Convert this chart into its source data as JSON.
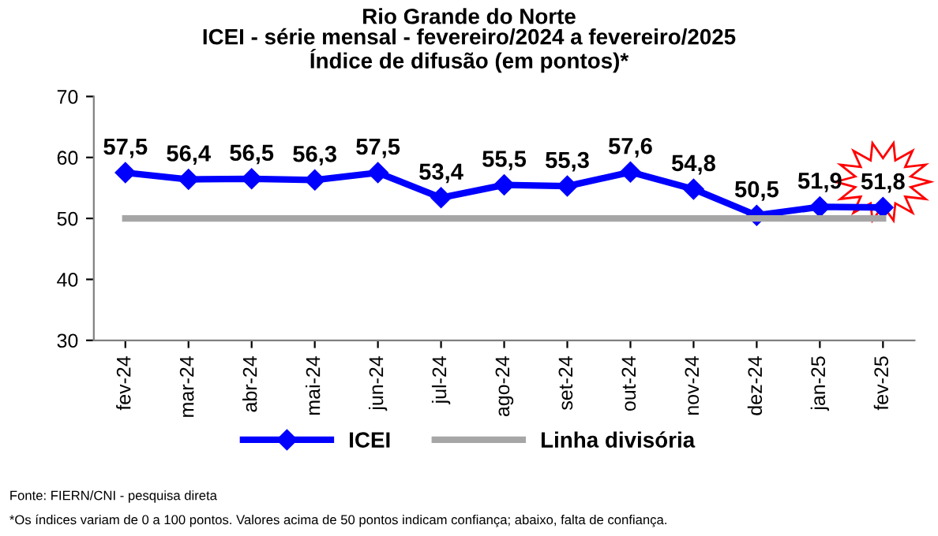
{
  "chart_data": {
    "type": "line",
    "title": "Rio Grande do Norte\nICEI - série mensal - fevereiro/2024 a fevereiro/2025\nÍndice de difusão (em pontos)*",
    "categories": [
      "fev-24",
      "mar-24",
      "abr-24",
      "mai-24",
      "jun-24",
      "jul-24",
      "ago-24",
      "set-24",
      "out-24",
      "nov-24",
      "dez-24",
      "jan-25",
      "fev-25"
    ],
    "series": [
      {
        "name": "ICEI",
        "color": "#0000ff",
        "marker": "diamond",
        "value_labels": [
          "57,5",
          "56,4",
          "56,5",
          "56,3",
          "57,5",
          "53,4",
          "55,5",
          "55,3",
          "57,6",
          "54,8",
          "50,5",
          "51,9",
          "51,8"
        ],
        "values": [
          57.5,
          56.4,
          56.5,
          56.3,
          57.5,
          53.4,
          55.5,
          55.3,
          57.6,
          54.8,
          50.5,
          51.9,
          51.8
        ]
      },
      {
        "name": "Linha divisória",
        "color": "#a6a6a6",
        "marker": "none",
        "values": [
          50,
          50,
          50,
          50,
          50,
          50,
          50,
          50,
          50,
          50,
          50,
          50,
          50
        ]
      }
    ],
    "ylim": [
      30,
      70
    ],
    "yticks": [
      30,
      40,
      50,
      60,
      70
    ],
    "grid": false,
    "legend": "bottom",
    "annotations": [
      "Fonte: FIERN/CNI - pesquisa direta",
      "*Os índices variam de 0 a 100 pontos. Valores acima de 50 pontos indicam confiança; abaixo, falta de confiança."
    ]
  }
}
